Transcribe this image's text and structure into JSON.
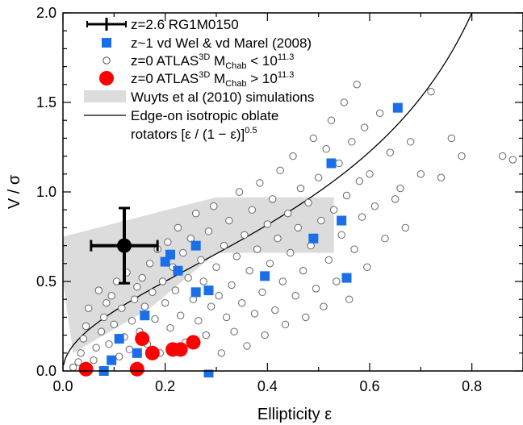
{
  "chart_data": {
    "type": "scatter",
    "xlabel": "Ellipticity ε",
    "ylabel": "V / σ",
    "xlim": [
      0,
      0.9
    ],
    "ylim": [
      0,
      2.0
    ],
    "x_ticks": [
      "0.0",
      "0.2",
      "0.4",
      "0.6",
      "0.8"
    ],
    "y_ticks": [
      "0.0",
      "0.5",
      "1.0",
      "1.5",
      "2.0"
    ],
    "grid": false,
    "legend_placement": "top-left",
    "legend": [
      {
        "label": "z=2.6 RG1M0150",
        "marker": "cross-errorbar",
        "color": "#000000"
      },
      {
        "label": "z~1 vd Wel & vd Marel (2008)",
        "marker": "square",
        "color": "#1a6fe8"
      },
      {
        "label_main": "z=0 ATLAS",
        "label_sup": "3D",
        "label_rest": " M",
        "label_sub": "Chab",
        "label_rel": " < 10",
        "label_exp": "11.3",
        "marker": "open-circle",
        "color": "#555555"
      },
      {
        "label_main": "z=0 ATLAS",
        "label_sup": "3D",
        "label_rest": " M",
        "label_sub": "Chab",
        "label_rel": " > 10",
        "label_exp": "11.3",
        "marker": "filled-circle",
        "color": "#ff0000"
      },
      {
        "label": "Wuyts et al (2010) simulations",
        "marker": "band",
        "color": "#dcdcdc"
      },
      {
        "label": "Edge-on isotropic oblate",
        "label2": "rotators [ε / (1 − ε)]",
        "label2_exp": "0.5",
        "marker": "line",
        "color": "#000000"
      }
    ],
    "series": [
      {
        "name": "z=2.6 RG1M0150",
        "points": [
          {
            "x": 0.12,
            "y": 0.7,
            "xerr": 0.065,
            "yerr": 0.21
          }
        ]
      },
      {
        "name": "z~1 vd Wel & vd Marel (2008)",
        "points": [
          [
            0.08,
            0.0
          ],
          [
            0.095,
            0.06
          ],
          [
            0.11,
            0.18
          ],
          [
            0.145,
            0.1
          ],
          [
            0.16,
            0.31
          ],
          [
            0.2,
            0.61
          ],
          [
            0.21,
            0.65
          ],
          [
            0.225,
            0.56
          ],
          [
            0.26,
            0.7
          ],
          [
            0.26,
            0.44
          ],
          [
            0.285,
            0.45
          ],
          [
            0.285,
            -0.02
          ],
          [
            0.395,
            0.53
          ],
          [
            0.49,
            0.74
          ],
          [
            0.525,
            1.16
          ],
          [
            0.545,
            0.84
          ],
          [
            0.555,
            0.52
          ],
          [
            0.655,
            1.47
          ]
        ]
      },
      {
        "name": "z=0 ATLAS3D MChab > 10^11.3",
        "points": [
          [
            0.045,
            0.01
          ],
          [
            0.145,
            0.01
          ],
          [
            0.155,
            0.18
          ],
          [
            0.175,
            0.1
          ],
          [
            0.215,
            0.12
          ],
          [
            0.23,
            0.12
          ],
          [
            0.255,
            0.16
          ]
        ]
      },
      {
        "name": "z=0 ATLAS3D MChab < 10^11.3",
        "points": [
          [
            0.02,
            0.02
          ],
          [
            0.03,
            0.05
          ],
          [
            0.035,
            0.1
          ],
          [
            0.04,
            0.18
          ],
          [
            0.045,
            0.25
          ],
          [
            0.05,
            0.35
          ],
          [
            0.06,
            0.06
          ],
          [
            0.065,
            0.13
          ],
          [
            0.07,
            0.45
          ],
          [
            0.075,
            0.22
          ],
          [
            0.08,
            0.3
          ],
          [
            0.085,
            0.38
          ],
          [
            0.09,
            0.15
          ],
          [
            0.095,
            0.42
          ],
          [
            0.1,
            0.26
          ],
          [
            0.105,
            0.5
          ],
          [
            0.11,
            0.08
          ],
          [
            0.115,
            0.35
          ],
          [
            0.12,
            0.19
          ],
          [
            0.125,
            0.55
          ],
          [
            0.13,
            0.12
          ],
          [
            0.135,
            0.28
          ],
          [
            0.14,
            0.4
          ],
          [
            0.145,
            0.47
          ],
          [
            0.15,
            0.22
          ],
          [
            0.155,
            0.52
          ],
          [
            0.16,
            0.36
          ],
          [
            0.165,
            0.15
          ],
          [
            0.17,
            0.6
          ],
          [
            0.175,
            0.44
          ],
          [
            0.18,
            0.29
          ],
          [
            0.185,
            0.68
          ],
          [
            0.19,
            0.1
          ],
          [
            0.195,
            0.5
          ],
          [
            0.2,
            0.38
          ],
          [
            0.205,
            0.72
          ],
          [
            0.21,
            0.24
          ],
          [
            0.215,
            0.58
          ],
          [
            0.22,
            0.45
          ],
          [
            0.225,
            0.8
          ],
          [
            0.23,
            0.31
          ],
          [
            0.235,
            0.66
          ],
          [
            0.24,
            0.16
          ],
          [
            0.245,
            0.52
          ],
          [
            0.25,
            0.74
          ],
          [
            0.255,
            0.4
          ],
          [
            0.26,
            0.88
          ],
          [
            0.265,
            0.28
          ],
          [
            0.27,
            0.62
          ],
          [
            0.275,
            0.5
          ],
          [
            0.28,
            0.2
          ],
          [
            0.285,
            0.78
          ],
          [
            0.29,
            0.36
          ],
          [
            0.295,
            0.92
          ],
          [
            0.3,
            0.58
          ],
          [
            0.305,
            0.42
          ],
          [
            0.31,
            0.1
          ],
          [
            0.315,
            0.7
          ],
          [
            0.32,
            0.3
          ],
          [
            0.325,
            0.84
          ],
          [
            0.33,
            0.48
          ],
          [
            0.335,
            0.22
          ],
          [
            0.34,
            0.64
          ],
          [
            0.345,
            1.0
          ],
          [
            0.35,
            0.38
          ],
          [
            0.355,
            0.76
          ],
          [
            0.36,
            0.14
          ],
          [
            0.365,
            0.56
          ],
          [
            0.37,
            0.9
          ],
          [
            0.375,
            0.32
          ],
          [
            0.38,
            0.68
          ],
          [
            0.385,
            1.05
          ],
          [
            0.39,
            0.44
          ],
          [
            0.395,
            0.2
          ],
          [
            0.4,
            0.82
          ],
          [
            0.405,
            0.6
          ],
          [
            0.41,
            0.96
          ],
          [
            0.415,
            0.34
          ],
          [
            0.42,
            0.74
          ],
          [
            0.425,
            1.12
          ],
          [
            0.43,
            0.5
          ],
          [
            0.435,
            0.26
          ],
          [
            0.44,
            0.88
          ],
          [
            0.445,
            0.66
          ],
          [
            0.45,
            1.2
          ],
          [
            0.455,
            0.42
          ],
          [
            0.46,
            0.8
          ],
          [
            0.465,
            1.02
          ],
          [
            0.47,
            0.56
          ],
          [
            0.475,
            0.3
          ],
          [
            0.48,
            0.94
          ],
          [
            0.485,
            0.7
          ],
          [
            0.49,
            1.3
          ],
          [
            0.495,
            0.46
          ],
          [
            0.5,
            1.08
          ],
          [
            0.505,
            0.84
          ],
          [
            0.51,
            0.36
          ],
          [
            0.515,
            1.24
          ],
          [
            0.52,
            0.62
          ],
          [
            0.525,
            1.4
          ],
          [
            0.53,
            0.9
          ],
          [
            0.535,
            0.5
          ],
          [
            0.54,
            1.16
          ],
          [
            0.545,
            0.76
          ],
          [
            0.55,
            1.5
          ],
          [
            0.555,
            0.98
          ],
          [
            0.56,
            0.4
          ],
          [
            0.565,
            1.28
          ],
          [
            0.57,
            0.68
          ],
          [
            0.575,
            1.6
          ],
          [
            0.58,
            1.06
          ],
          [
            0.585,
            0.86
          ],
          [
            0.59,
            1.36
          ],
          [
            0.595,
            0.58
          ],
          [
            0.6,
            1.1
          ],
          [
            0.61,
            0.92
          ],
          [
            0.62,
            1.44
          ],
          [
            0.63,
            0.74
          ],
          [
            0.64,
            1.22
          ],
          [
            0.65,
            0.96
          ],
          [
            0.66,
            1.02
          ],
          [
            0.67,
            0.8
          ],
          [
            0.68,
            1.28
          ],
          [
            0.7,
            1.1
          ],
          [
            0.72,
            1.56
          ],
          [
            0.74,
            1.08
          ],
          [
            0.76,
            1.3
          ],
          [
            0.78,
            1.2
          ],
          [
            0.86,
            1.2
          ],
          [
            0.88,
            1.18
          ]
        ]
      }
    ],
    "simulation_band": {
      "name": "Wuyts et al (2010) simulations",
      "polygon": [
        [
          0.0,
          0.5
        ],
        [
          0.0,
          0.75
        ],
        [
          0.3,
          0.97
        ],
        [
          0.53,
          0.97
        ],
        [
          0.53,
          0.66
        ],
        [
          0.3,
          0.66
        ],
        [
          0.17,
          0.35
        ],
        [
          0.05,
          0.15
        ],
        [
          0.02,
          0.1
        ]
      ]
    },
    "model_curve": {
      "name": "Edge-on isotropic oblate rotators",
      "formula": "[ε / (1 − ε)]^0.5"
    },
    "colors": {
      "square": "#1a6fe8",
      "red_circle": "#ff0000",
      "open_circle": "#666666",
      "band": "#dcdcdc"
    }
  }
}
